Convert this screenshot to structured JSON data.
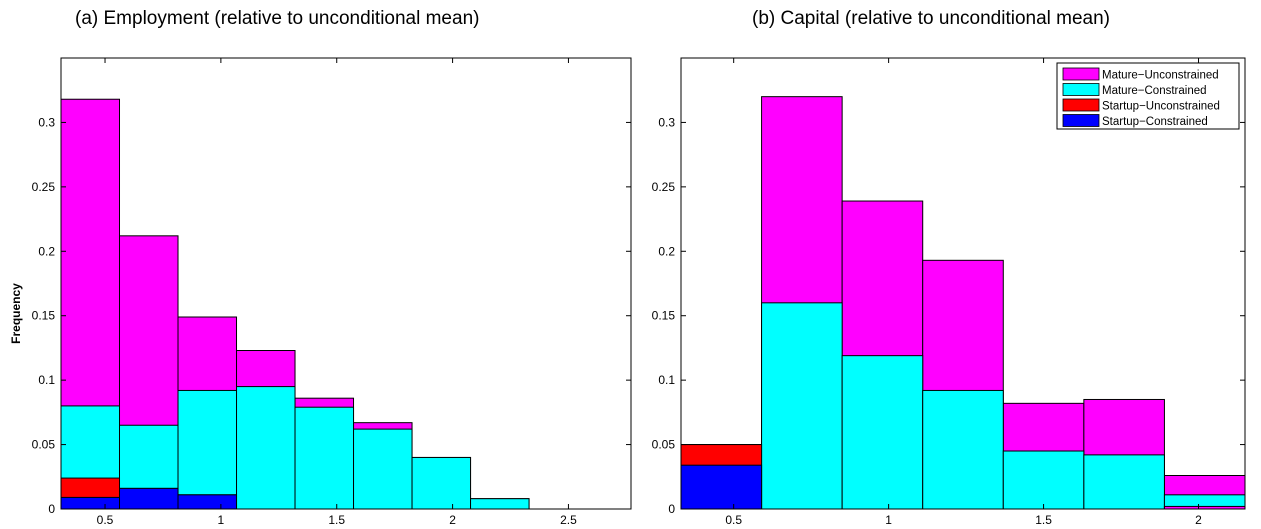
{
  "chart_data": [
    {
      "type": "bar",
      "subtype": "stacked-histogram",
      "title": "(a) Employment (relative to unconditional mean)",
      "xlabel": "",
      "ylabel": "Frequency",
      "xlim": [
        0.31,
        2.77
      ],
      "ylim": [
        0,
        0.35
      ],
      "xticks": [
        "0.5",
        "1",
        "1.5",
        "2",
        "2.5"
      ],
      "yticks": [
        "0",
        "0.05",
        "0.1",
        "0.15",
        "0.2",
        "0.25",
        "0.3"
      ],
      "bin_edges": [
        0.31,
        0.5625,
        0.815,
        1.0675,
        1.32,
        1.5725,
        1.825,
        2.0775,
        2.33,
        2.5825
      ],
      "series_order": [
        "Startup−Constrained",
        "Startup−Unconstrained",
        "Mature−Constrained",
        "Mature−Unconstrained"
      ],
      "colors": [
        "#0000ff",
        "#ff0000",
        "#00ffff",
        "#ff00ff"
      ],
      "cumulative_tops": [
        [
          0.009,
          0.016,
          0.011,
          0.0,
          0.0,
          0.0,
          0.0,
          0.0,
          0.0
        ],
        [
          0.024,
          0.016,
          0.011,
          0.0,
          0.0,
          0.0,
          0.0,
          0.0,
          0.0
        ],
        [
          0.08,
          0.065,
          0.092,
          0.095,
          0.079,
          0.062,
          0.04,
          0.008,
          0.0
        ],
        [
          0.318,
          0.212,
          0.149,
          0.123,
          0.086,
          0.067,
          0.04,
          0.008,
          0.0
        ]
      ],
      "grid": false,
      "legend": "none"
    },
    {
      "type": "bar",
      "subtype": "stacked-histogram",
      "title": "(b) Capital (relative to unconditional mean)",
      "xlabel": "",
      "ylabel": "",
      "xlim": [
        0.33,
        2.15
      ],
      "ylim": [
        0,
        0.35
      ],
      "xticks": [
        "0.5",
        "1",
        "1.5",
        "2"
      ],
      "yticks": [
        "0",
        "0.05",
        "0.1",
        "0.15",
        "0.2",
        "0.25",
        "0.3"
      ],
      "bin_edges": [
        0.33,
        0.59,
        0.85,
        1.11,
        1.37,
        1.63,
        1.89,
        2.15
      ],
      "series_order": [
        "Startup−Constrained",
        "Startup−Unconstrained",
        "Mature−Constrained",
        "Mature−Unconstrained"
      ],
      "colors": [
        "#0000ff",
        "#ff0000",
        "#00ffff",
        "#ff00ff"
      ],
      "cumulative_tops": [
        [
          0.034,
          0.0,
          0.0,
          0.0,
          0.0,
          0.0,
          0.0
        ],
        [
          0.05,
          0.0,
          0.0,
          0.0,
          0.0,
          0.0,
          0.0
        ],
        [
          0.05,
          0.16,
          0.119,
          0.092,
          0.045,
          0.042,
          0.011
        ],
        [
          0.05,
          0.32,
          0.239,
          0.193,
          0.082,
          0.085,
          0.026
        ]
      ],
      "extra_bar": {
        "x0": 1.89,
        "x1": 2.15,
        "note_value": 0.002
      },
      "grid": false,
      "legend": "top-right",
      "legend_entries": [
        {
          "label": "Mature−Unconstrained",
          "color": "#ff00ff"
        },
        {
          "label": "Mature−Constrained",
          "color": "#00ffff"
        },
        {
          "label": "Startup−Unconstrained",
          "color": "#ff0000"
        },
        {
          "label": "Startup−Constrained",
          "color": "#0000ff"
        }
      ]
    }
  ]
}
